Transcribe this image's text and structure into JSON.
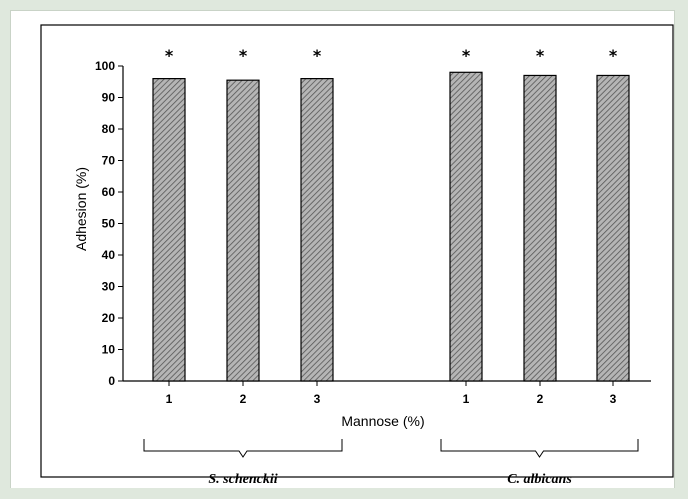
{
  "chart_data": {
    "type": "bar",
    "ylabel": "Adhesion (%)",
    "xlabel": "Mannose (%)",
    "ylim": [
      0,
      100
    ],
    "yticks": [
      0,
      10,
      20,
      30,
      40,
      50,
      60,
      70,
      80,
      90,
      100
    ],
    "grid": false,
    "legend": "none",
    "bar_color": "#8f8f8f",
    "groups": [
      {
        "name": "S. schenckii",
        "categories": [
          "1",
          "2",
          "3"
        ],
        "values": [
          96,
          95.5,
          96
        ],
        "annotations": [
          "*",
          "*",
          "*"
        ]
      },
      {
        "name": "C. albicans",
        "categories": [
          "1",
          "2",
          "3"
        ],
        "values": [
          98,
          97,
          97
        ],
        "annotations": [
          "*",
          "*",
          "*"
        ]
      }
    ]
  }
}
